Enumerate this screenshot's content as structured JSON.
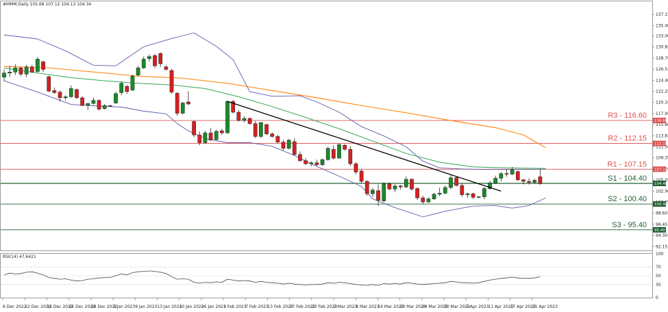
{
  "chart_data": {
    "type": "candlestick",
    "header": "#MMM,Daily  105.68 107.12 104.13 104.34",
    "rsi_label": "RSI(14) 47.6421",
    "colors": {
      "up": "#1a8a2a",
      "down": "#d62020",
      "ma_fast": "#2fa84f",
      "ma_slow": "#ff8c1a",
      "bands": "#5a5aa8",
      "trend": "#000000",
      "resistance": "#e05050",
      "support": "#1f5f2f",
      "rsi": "#444444"
    },
    "price_axis": {
      "ylim": [
        91.4,
        139.7
      ],
      "ticks": [
        "137.15",
        "135.00",
        "133.00",
        "130.85",
        "128.70",
        "126.55",
        "124.40",
        "122.25",
        "120.10",
        "117.95",
        "115.80",
        "113.65",
        "111.50",
        "109.35",
        "107.20",
        "105.05",
        "102.90",
        "100.75",
        "98.60",
        "96.45",
        "94.30",
        "92.15"
      ]
    },
    "rsi_axis": {
      "ylim": [
        0,
        100
      ],
      "ticks": [
        "100",
        "70",
        "50",
        "30",
        "0"
      ],
      "levels": [
        70,
        50,
        30
      ]
    },
    "x_ticks": [
      "6 Dec 2022",
      "12 Dec 2022",
      "16 Dec 2022",
      "22 Dec 2022",
      "28 Dec 2022",
      "3 Jan 2023",
      "9 Jan 2023",
      "13 Jan 2023",
      "20 Jan 2023",
      "26 Jan 2023",
      "1 Feb 2023",
      "7 Feb 2023",
      "13 Feb 2023",
      "17 Feb 2023",
      "23 Feb 2023",
      "2 Mar 2023",
      "8 Mar 2023",
      "14 Mar 2023",
      "20 Mar 2023",
      "24 Mar 2023",
      "30 Mar 2023",
      "5 Apr 2023",
      "11 Apr 2023",
      "17 Apr 2023",
      "21 Apr 2023"
    ],
    "levels": [
      {
        "name": "R3",
        "label": "R3 - 116.60",
        "value": 116.6,
        "tag": "116.60",
        "kind": "resistance"
      },
      {
        "name": "R2",
        "label": "R2 - 112.15",
        "value": 112.15,
        "tag": "112.15",
        "kind": "resistance"
      },
      {
        "name": "R1",
        "label": "R1 - 107.15",
        "value": 107.15,
        "tag": "107.15",
        "kind": "resistance"
      },
      {
        "name": "S1",
        "label": "S1 - 104.40",
        "value": 104.4,
        "tag": "104.40",
        "kind": "support"
      },
      {
        "name": "S2",
        "label": "S2 - 100.40",
        "value": 100.4,
        "tag": "100.40",
        "kind": "support"
      },
      {
        "name": "S3",
        "label": "S3 - 95.40",
        "value": 95.4,
        "tag": "95.40",
        "kind": "support"
      }
    ],
    "candles": [
      [
        125.0,
        126.5,
        124.2,
        125.8
      ],
      [
        125.8,
        127.2,
        125.0,
        126.0
      ],
      [
        126.0,
        127.5,
        125.4,
        126.8
      ],
      [
        126.8,
        127.0,
        125.2,
        125.6
      ],
      [
        125.6,
        127.4,
        125.0,
        127.0
      ],
      [
        127.0,
        127.4,
        125.8,
        126.0
      ],
      [
        126.1,
        128.9,
        125.9,
        128.5
      ],
      [
        128.0,
        128.2,
        126.0,
        126.5
      ],
      [
        125.1,
        125.3,
        122.1,
        122.3
      ],
      [
        122.4,
        123.0,
        121.8,
        122.0
      ],
      [
        122.1,
        122.4,
        120.3,
        121.0
      ],
      [
        121.0,
        121.5,
        120.5,
        121.2
      ],
      [
        121.2,
        123.4,
        121.0,
        122.8
      ],
      [
        122.6,
        122.8,
        120.8,
        121.0
      ],
      [
        121.0,
        121.3,
        119.4,
        119.5
      ],
      [
        119.5,
        120.0,
        118.6,
        119.9
      ],
      [
        119.9,
        121.0,
        119.7,
        120.5
      ],
      [
        120.5,
        120.7,
        118.5,
        118.8
      ],
      [
        118.9,
        119.8,
        118.7,
        119.5
      ],
      [
        119.5,
        119.6,
        119.3,
        119.4
      ],
      [
        120.0,
        122.2,
        119.8,
        121.8
      ],
      [
        122.0,
        124.2,
        121.5,
        123.8
      ],
      [
        123.2,
        123.5,
        121.8,
        122.2
      ],
      [
        122.5,
        125.5,
        122.3,
        125.2
      ],
      [
        125.4,
        127.2,
        125.2,
        126.8
      ],
      [
        126.8,
        129.0,
        126.6,
        128.5
      ],
      [
        128.6,
        129.4,
        128.0,
        129.0
      ],
      [
        129.2,
        129.5,
        126.8,
        127.2
      ],
      [
        129.6,
        129.8,
        127.0,
        127.6
      ],
      [
        127.0,
        127.3,
        126.3,
        126.5
      ],
      [
        126.3,
        126.6,
        121.8,
        122.1
      ],
      [
        121.9,
        122.1,
        117.5,
        118.0
      ],
      [
        118.0,
        120.2,
        117.8,
        120.0
      ],
      [
        120.2,
        122.3,
        119.6,
        119.8
      ],
      [
        116.4,
        116.6,
        113.4,
        113.8
      ],
      [
        113.8,
        114.5,
        111.8,
        112.3
      ],
      [
        112.3,
        114.6,
        112.1,
        114.2
      ],
      [
        114.2,
        115.1,
        112.6,
        112.8
      ],
      [
        112.9,
        114.8,
        112.7,
        114.5
      ],
      [
        114.6,
        115.0,
        113.8,
        114.2
      ],
      [
        114.2,
        120.5,
        114.0,
        120.3
      ],
      [
        120.3,
        120.6,
        118.0,
        118.2
      ],
      [
        118.2,
        118.6,
        116.4,
        116.6
      ],
      [
        116.6,
        117.4,
        116.2,
        117.0
      ],
      [
        117.0,
        117.2,
        115.8,
        116.0
      ],
      [
        116.0,
        116.5,
        113.2,
        113.5
      ],
      [
        113.5,
        116.3,
        113.2,
        116.2
      ],
      [
        115.8,
        116.0,
        113.8,
        114.0
      ],
      [
        114.0,
        114.3,
        113.3,
        113.5
      ],
      [
        113.5,
        113.8,
        112.2,
        112.4
      ],
      [
        112.4,
        112.8,
        110.8,
        111.2
      ],
      [
        111.2,
        113.0,
        111.0,
        112.8
      ],
      [
        112.5,
        113.2,
        109.8,
        110.0
      ],
      [
        110.0,
        110.6,
        108.6,
        108.8
      ],
      [
        108.8,
        109.3,
        108.0,
        108.2
      ],
      [
        108.2,
        108.7,
        107.7,
        108.4
      ],
      [
        108.4,
        109.0,
        107.8,
        108.0
      ],
      [
        108.0,
        109.2,
        107.8,
        109.0
      ],
      [
        109.0,
        111.5,
        108.8,
        111.2
      ],
      [
        111.0,
        111.8,
        109.0,
        109.3
      ],
      [
        109.3,
        112.2,
        109.2,
        111.9
      ],
      [
        111.8,
        112.0,
        110.8,
        111.0
      ],
      [
        111.0,
        111.6,
        107.8,
        108.2
      ],
      [
        108.2,
        108.5,
        106.2,
        106.6
      ],
      [
        106.8,
        107.2,
        104.5,
        104.8
      ],
      [
        104.8,
        105.0,
        102.0,
        102.4
      ],
      [
        102.4,
        103.5,
        101.8,
        103.1
      ],
      [
        103.0,
        104.2,
        100.0,
        101.1
      ],
      [
        101.0,
        104.6,
        100.8,
        104.3
      ],
      [
        104.3,
        104.6,
        103.1,
        103.3
      ],
      [
        103.3,
        104.2,
        102.8,
        103.9
      ],
      [
        103.9,
        104.1,
        103.2,
        103.7
      ],
      [
        103.7,
        105.7,
        103.5,
        105.2
      ],
      [
        105.2,
        105.4,
        103.0,
        103.3
      ],
      [
        103.4,
        103.6,
        101.2,
        101.6
      ],
      [
        101.6,
        102.0,
        100.4,
        100.8
      ],
      [
        100.8,
        101.7,
        100.6,
        101.4
      ],
      [
        101.4,
        102.6,
        101.2,
        102.3
      ],
      [
        102.3,
        103.6,
        101.9,
        102.5
      ],
      [
        102.5,
        104.0,
        102.3,
        103.6
      ],
      [
        103.6,
        106.0,
        103.3,
        105.5
      ],
      [
        105.5,
        105.7,
        103.8,
        104.0
      ],
      [
        104.0,
        104.4,
        101.8,
        102.2
      ],
      [
        102.2,
        102.6,
        101.6,
        102.4
      ],
      [
        102.4,
        102.6,
        101.4,
        101.7
      ],
      [
        101.8,
        101.9,
        101.5,
        101.8
      ],
      [
        101.8,
        103.7,
        101.3,
        103.4
      ],
      [
        103.4,
        104.9,
        103.2,
        104.5
      ],
      [
        104.5,
        105.9,
        104.3,
        105.4
      ],
      [
        105.4,
        106.6,
        104.8,
        106.3
      ],
      [
        106.3,
        107.1,
        105.7,
        106.2
      ],
      [
        106.2,
        107.6,
        106.0,
        107.0
      ],
      [
        106.7,
        106.9,
        104.8,
        105.1
      ],
      [
        105.1,
        105.3,
        104.2,
        104.8
      ],
      [
        104.8,
        105.4,
        104.2,
        104.6
      ],
      [
        104.6,
        105.3,
        104.3,
        105.0
      ],
      [
        105.68,
        107.12,
        104.13,
        104.34
      ]
    ],
    "sma_slow": [
      [
        0,
        127.1
      ],
      [
        8,
        126.8
      ],
      [
        16,
        126.0
      ],
      [
        24,
        125.2
      ],
      [
        32,
        124.8
      ],
      [
        40,
        123.8
      ],
      [
        48,
        122.4
      ],
      [
        56,
        121.0
      ],
      [
        64,
        119.5
      ],
      [
        72,
        118.1
      ],
      [
        80,
        116.6
      ],
      [
        88,
        115.2
      ],
      [
        93,
        113.8
      ],
      [
        97,
        111.3
      ]
    ],
    "sma_fast": [
      [
        0,
        126.8
      ],
      [
        6,
        125.8
      ],
      [
        12,
        124.9
      ],
      [
        18,
        124.3
      ],
      [
        24,
        123.8
      ],
      [
        30,
        123.5
      ],
      [
        36,
        122.8
      ],
      [
        42,
        121.2
      ],
      [
        48,
        119.3
      ],
      [
        54,
        117.2
      ],
      [
        60,
        115.0
      ],
      [
        66,
        112.6
      ],
      [
        72,
        110.2
      ],
      [
        78,
        108.5
      ],
      [
        84,
        107.6
      ],
      [
        90,
        107.4
      ],
      [
        97,
        107.3
      ]
    ],
    "bb_upper": [
      [
        0,
        133.2
      ],
      [
        6,
        132.4
      ],
      [
        11,
        130.1
      ],
      [
        16,
        127.3
      ],
      [
        20,
        127.2
      ],
      [
        25,
        130.9
      ],
      [
        30,
        132.5
      ],
      [
        34,
        133.6
      ],
      [
        38,
        131.0
      ],
      [
        41,
        128.4
      ],
      [
        44,
        122.2
      ],
      [
        48,
        121.3
      ],
      [
        53,
        121.4
      ],
      [
        56,
        120.2
      ],
      [
        60,
        118.2
      ],
      [
        64,
        115.4
      ],
      [
        68,
        113.6
      ],
      [
        72,
        111.5
      ],
      [
        75,
        108.7
      ],
      [
        78,
        107.4
      ],
      [
        82,
        107.2
      ],
      [
        86,
        107.1
      ],
      [
        90,
        107.1
      ],
      [
        94,
        107.1
      ],
      [
        97,
        107.2
      ]
    ],
    "bb_lower": [
      [
        0,
        124.3
      ],
      [
        6,
        122.1
      ],
      [
        12,
        119.7
      ],
      [
        17,
        119.4
      ],
      [
        21,
        119.2
      ],
      [
        25,
        118.4
      ],
      [
        29,
        117.9
      ],
      [
        31,
        116.0
      ],
      [
        33,
        114.6
      ],
      [
        36,
        113.1
      ],
      [
        40,
        112.3
      ],
      [
        44,
        112.3
      ],
      [
        48,
        111.6
      ],
      [
        52,
        109.8
      ],
      [
        56,
        107.7
      ],
      [
        60,
        105.8
      ],
      [
        64,
        103.8
      ],
      [
        66,
        101.4
      ],
      [
        70,
        99.7
      ],
      [
        75,
        97.9
      ],
      [
        79,
        99.0
      ],
      [
        84,
        100.0
      ],
      [
        88,
        100.1
      ],
      [
        91,
        99.6
      ],
      [
        94,
        100.1
      ],
      [
        97,
        101.6
      ]
    ],
    "trendline": {
      "from": [
        40,
        120.3
      ],
      "to": [
        89,
        102.9
      ]
    },
    "rsi": [
      52,
      56,
      54,
      55,
      58,
      59,
      56,
      52,
      46,
      44,
      42,
      43,
      40,
      38,
      39,
      42,
      43,
      45,
      46,
      46,
      50,
      54,
      52,
      57,
      59,
      60,
      61,
      60,
      58,
      55,
      48,
      42,
      43,
      42,
      35,
      33,
      35,
      34,
      36,
      35,
      42,
      40,
      38,
      39,
      38,
      35,
      37,
      35,
      34,
      33,
      31,
      33,
      31,
      30,
      29,
      30,
      30,
      31,
      34,
      33,
      35,
      34,
      32,
      30,
      29,
      28,
      30,
      28,
      32,
      31,
      32,
      31,
      34,
      33,
      31,
      30,
      31,
      32,
      33,
      34,
      37,
      36,
      34,
      34,
      33,
      34,
      37,
      40,
      42,
      44,
      45,
      47,
      45,
      44,
      44,
      45,
      47.6
    ]
  }
}
